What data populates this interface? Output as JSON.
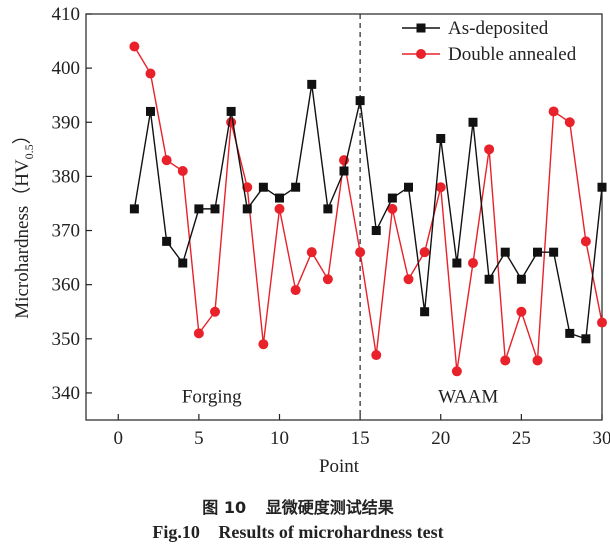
{
  "chart_data": {
    "type": "line",
    "title": "",
    "xlabel": "Point",
    "ylabel": "Microhardness（HV",
    "ylabel_sub": "0.5",
    "ylabel_close": "）",
    "xlim": [
      -2,
      30
    ],
    "ylim": [
      335,
      410
    ],
    "xticks": [
      0,
      5,
      10,
      15,
      20,
      25,
      30
    ],
    "yticks": [
      340,
      350,
      360,
      370,
      380,
      390,
      400,
      410
    ],
    "divider_x": 15,
    "regions": [
      {
        "label": "Forging",
        "x": 5.8,
        "y": 339.5
      },
      {
        "label": "WAAM",
        "x": 21.7,
        "y": 339.5
      }
    ],
    "legend_position": "top-right",
    "series": [
      {
        "name": "As-deposited",
        "color": "#111111",
        "marker": "square",
        "x": [
          1,
          2,
          3,
          4,
          5,
          6,
          7,
          8,
          9,
          10,
          11,
          12,
          13,
          14,
          15,
          16,
          17,
          18,
          19,
          20,
          21,
          22,
          23,
          24,
          25,
          26,
          27,
          28,
          29,
          30
        ],
        "values": [
          374,
          392,
          368,
          364,
          374,
          374,
          392,
          374,
          378,
          376,
          378,
          397,
          374,
          381,
          394,
          370,
          376,
          378,
          355,
          387,
          364,
          390,
          361,
          366,
          361,
          366,
          366,
          351,
          350,
          378
        ]
      },
      {
        "name": "Double annealed",
        "color": "#e8212a",
        "marker": "circle",
        "x": [
          1,
          2,
          3,
          4,
          5,
          6,
          7,
          8,
          9,
          10,
          11,
          12,
          13,
          14,
          15,
          16,
          17,
          18,
          19,
          20,
          21,
          22,
          23,
          24,
          25,
          26,
          27,
          28,
          29,
          30
        ],
        "values": [
          404,
          399,
          383,
          381,
          351,
          355,
          390,
          378,
          349,
          374,
          359,
          366,
          361,
          383,
          366,
          347,
          374,
          361,
          366,
          378,
          344,
          364,
          385,
          346,
          355,
          346,
          392,
          390,
          368,
          353
        ]
      }
    ]
  },
  "caption": {
    "cn_fig": "图 10",
    "cn_text": "显微硬度测试结果",
    "en_fig": "Fig.10",
    "en_text": "Results of microhardness test"
  }
}
